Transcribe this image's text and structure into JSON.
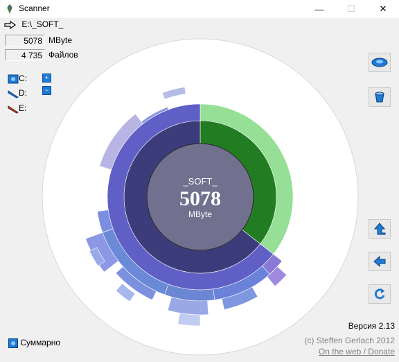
{
  "window": {
    "title": "Scanner",
    "minimize": "—",
    "maximize": "☐",
    "close": "✕"
  },
  "path": "E:\\_SOFT_",
  "stats": {
    "size_value": "5078",
    "size_unit": "MByte",
    "files_value": "4 735",
    "files_label": "Файлов"
  },
  "drives": [
    {
      "label": "C:",
      "icon": "drive-c-icon"
    },
    {
      "label": "D:",
      "icon": "drive-d-icon"
    },
    {
      "label": "E:",
      "icon": "drive-e-icon"
    }
  ],
  "center": {
    "name": "_SOFT_",
    "size": "5078",
    "unit": "MByte"
  },
  "summary_label": "Суммарно",
  "version": "Версия 2.13",
  "copyright": "(c) Steffen Gerlach 2012",
  "web_link": "On the web / Donate",
  "colors": {
    "center": "#71708e",
    "ring1_blue": "#3c3c7a",
    "ring1_green": "#227d22",
    "ring2_blue": "#5f5fc6",
    "ring2_green": "#96df96",
    "toolbar_blue": "#1e7bd4"
  }
}
